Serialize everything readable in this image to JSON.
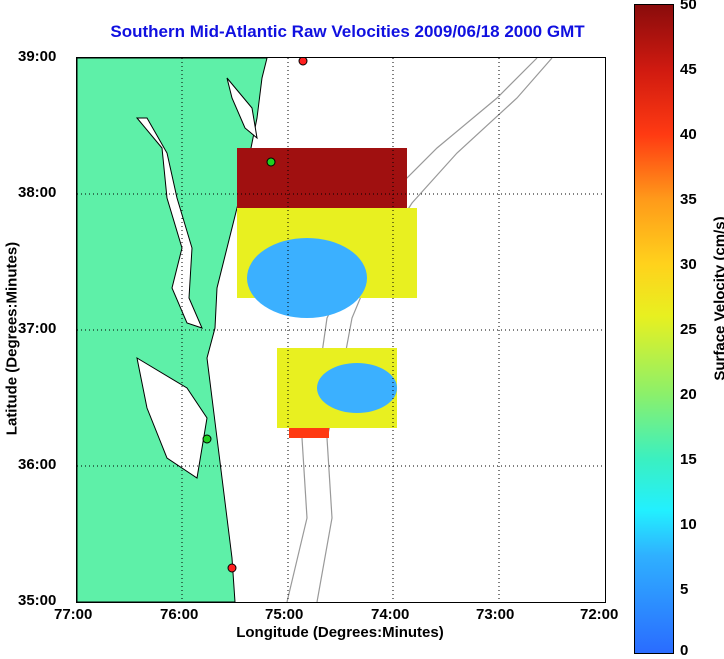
{
  "title": "Southern Mid-Atlantic Raw Velocities 2009/06/18 2000 GMT",
  "xlabel": "Longitude (Degrees:Minutes)",
  "ylabel": "Latitude (Degrees:Minutes)",
  "x_ticks": [
    "77:00",
    "76:00",
    "75:00",
    "74:00",
    "73:00",
    "72:00"
  ],
  "y_ticks": [
    "39:00",
    "38:00",
    "37:00",
    "36:00",
    "35:00"
  ],
  "colorbar": {
    "label": "Surface Velocity (cm/s)",
    "ticks": [
      "50",
      "45",
      "40",
      "35",
      "30",
      "25",
      "20",
      "15",
      "10",
      "5",
      "0"
    ],
    "range": [
      0,
      50
    ]
  },
  "colors": {
    "land": "#5ef0a8",
    "water": "#ffffff",
    "bathymetry": "#999999",
    "title": "#1010e0",
    "station": "#ff2020",
    "station_green": "#20d020"
  }
}
